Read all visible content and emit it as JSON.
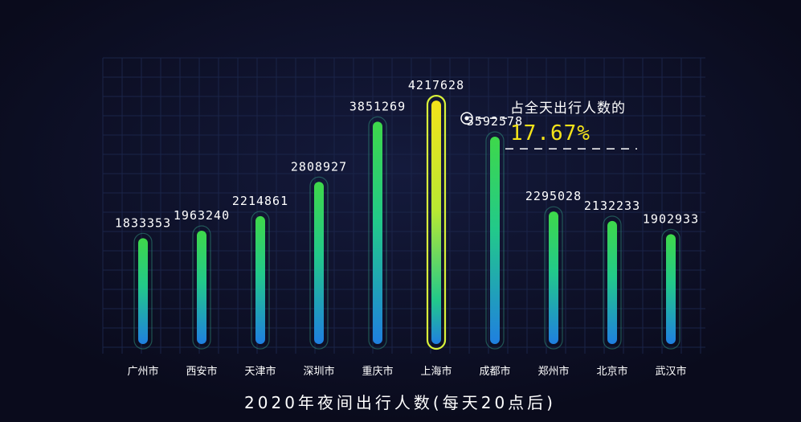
{
  "chart_data": {
    "type": "bar",
    "title": "2020年夜间出行人数(每天20点后)",
    "categories": [
      "广州市",
      "西安市",
      "天津市",
      "深圳市",
      "重庆市",
      "上海市",
      "成都市",
      "郑州市",
      "北京市",
      "武汉市"
    ],
    "values": [
      1833353,
      1963240,
      2214861,
      2808927,
      3851269,
      4217628,
      3592578,
      2295028,
      2132233,
      1902933
    ],
    "value_labels": [
      "1833353",
      "1963240",
      "2214861",
      "2808927",
      "3851269",
      "4217628",
      "3592578",
      "2295028",
      "2132233",
      "1902933"
    ],
    "highlight_index": 5,
    "annotation": {
      "text": "占全天出行人数的",
      "value": "17.67%"
    },
    "xlabel": "",
    "ylabel": "",
    "ylim": [
      0,
      4400000
    ],
    "grid": true,
    "legend": "none",
    "colors": {
      "background": "#0a0b1c",
      "grid": "#1a2448",
      "bar_bottom": "#1f7fe0",
      "bar_mid": "#22c98a",
      "bar_top": "#3ed84a",
      "highlight_bottom": "#22c98a",
      "highlight_top": "#f4e31a",
      "highlight_outline": "#d9f23a",
      "accent": "#f4e31a",
      "text": "#ffffff"
    }
  }
}
